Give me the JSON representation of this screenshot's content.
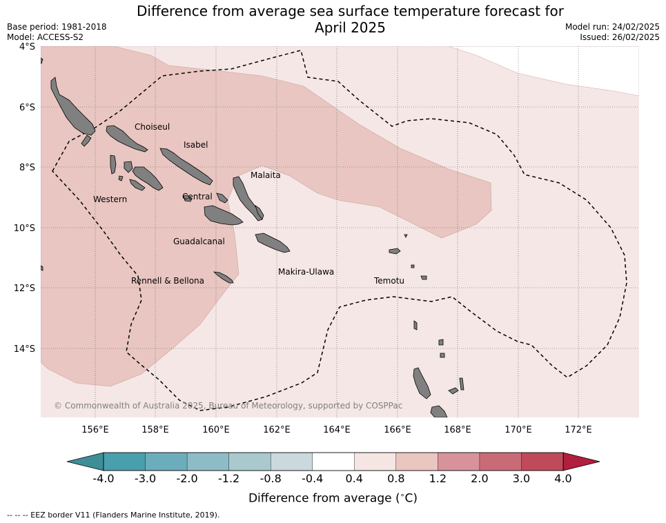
{
  "title_line1": "Difference from average sea surface temperature forecast for",
  "title_line2": "April 2025",
  "base_period": "Base period: 1981-2018",
  "model": "Model: ACCESS-S2",
  "model_run": "Model run: 24/02/2025",
  "issued": "Issued: 26/02/2025",
  "copyright": "© Commonwealth of Australia 2025, Bureau of Meteorology, supported by COSPPac",
  "lat_labels": [
    "4°S",
    "6°S",
    "8°S",
    "10°S",
    "12°S",
    "14°S"
  ],
  "lon_labels": [
    "156°E",
    "158°E",
    "160°E",
    "162°E",
    "164°E",
    "166°E",
    "168°E",
    "170°E",
    "172°E"
  ],
  "regions": [
    {
      "name": "Choiseul"
    },
    {
      "name": "Isabel"
    },
    {
      "name": "Malaita"
    },
    {
      "name": "Western"
    },
    {
      "name": "Central"
    },
    {
      "name": "Guadalcanal"
    },
    {
      "name": "Makira-Ulawa"
    },
    {
      "name": "Temotu"
    },
    {
      "name": "Rennell & Bellona"
    }
  ],
  "colorbar": {
    "title": "Difference from average ($^\\circ$C)",
    "title_display": "Difference from average (",
    "title_unit": "C)",
    "tick_labels": [
      "-4.0",
      "-3.0",
      "-2.0",
      "-1.2",
      "-0.8",
      "-0.4",
      "0.4",
      "0.8",
      "1.2",
      "2.0",
      "3.0",
      "4.0"
    ],
    "colors": [
      "#4a9fae",
      "#6cadbb",
      "#8dbcc6",
      "#a9c9ce",
      "#c9d9dd",
      "#ffffff",
      "#f5e6e4",
      "#e9c6c0",
      "#d8939a",
      "#c96b77",
      "#bf4b5a"
    ],
    "under_color": "#3e8e98",
    "over_color": "#b21e3e"
  },
  "land_color": "#808080",
  "footnote": "-- -- -- EEZ border V11 (Flanders Marine Institute, 2019)."
}
